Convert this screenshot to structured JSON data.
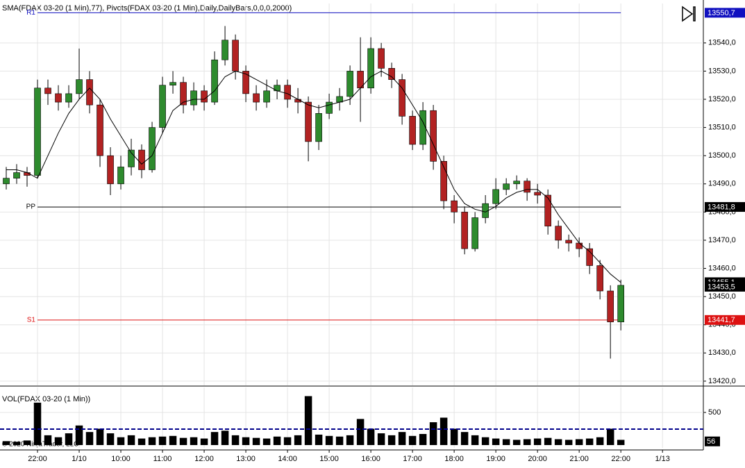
{
  "chart_data": [
    {
      "type": "candlestick",
      "title": "SMA(FDAX 03-20 (1 Min),77),  Pivots(FDAX 03-20 (1 Min),Daily,DailyBars,0,0,0,2000)",
      "up_color": "#2e8b2e",
      "down_color": "#b22222",
      "xlim": [
        -0.9,
        15.98
      ],
      "ylim": [
        13418.5,
        13554.0
      ],
      "yticks": [
        {
          "value": 13420,
          "label": "13420,0"
        },
        {
          "value": 13430,
          "label": "13430,0"
        },
        {
          "value": 13440,
          "label": "13440,0"
        },
        {
          "value": 13450,
          "label": "13450,0"
        },
        {
          "value": 13460,
          "label": "13460,0"
        },
        {
          "value": 13470,
          "label": "13470,0"
        },
        {
          "value": 13480,
          "label": "13480,0"
        },
        {
          "value": 13490,
          "label": "13490,0"
        },
        {
          "value": 13500,
          "label": "13500,0"
        },
        {
          "value": 13510,
          "label": "13510,0"
        },
        {
          "value": 13520,
          "label": "13520,0"
        },
        {
          "value": 13530,
          "label": "13530,0"
        },
        {
          "value": 13540,
          "label": "13540,0"
        }
      ],
      "grid": true,
      "x": [
        -0.75,
        -0.5,
        -0.25,
        0,
        0.25,
        0.5,
        0.75,
        1,
        1.25,
        1.5,
        1.75,
        2,
        2.25,
        2.5,
        2.75,
        3,
        3.25,
        3.5,
        3.75,
        4,
        4.25,
        4.5,
        4.75,
        5,
        5.25,
        5.5,
        5.75,
        6,
        6.25,
        6.5,
        6.75,
        7,
        7.25,
        7.5,
        7.75,
        8,
        8.25,
        8.5,
        8.75,
        9,
        9.25,
        9.5,
        9.75,
        10,
        10.25,
        10.5,
        10.75,
        11,
        11.25,
        11.5,
        11.75,
        12,
        12.25,
        12.5,
        12.75,
        13,
        13.25,
        13.5,
        13.75,
        14
      ],
      "open": [
        13490,
        13492,
        13494,
        13493,
        13524,
        13522,
        13519,
        13522,
        13527,
        13518,
        13500,
        13490,
        13496,
        13502,
        13495,
        13510,
        13525,
        13526,
        13518,
        13523,
        13519,
        13534,
        13541,
        13530,
        13522,
        13519,
        13523,
        13525,
        13520,
        13519,
        13505,
        13515,
        13519,
        13521,
        13530,
        13524,
        13538,
        13531,
        13527,
        13514,
        13504,
        13516,
        13498,
        13484,
        13480,
        13467,
        13478,
        13483,
        13488,
        13490,
        13491,
        13487,
        13486,
        13475,
        13470,
        13469,
        13467,
        13461,
        13452,
        13441
      ],
      "high": [
        13496,
        13497,
        13496,
        13527,
        13527,
        13525,
        13525,
        13538,
        13530,
        13520,
        13503,
        13500,
        13506,
        13504,
        13512,
        13528,
        13530,
        13528,
        13526,
        13525,
        13537,
        13546,
        13543,
        13532,
        13525,
        13527,
        13527,
        13527,
        13524,
        13521,
        13518,
        13522,
        13524,
        13532,
        13542,
        13542,
        13540,
        13533,
        13529,
        13516,
        13519,
        13518,
        13500,
        13486,
        13482,
        13480,
        13486,
        13492,
        13492,
        13493,
        13492,
        13490,
        13488,
        13477,
        13472,
        13471,
        13469,
        13463,
        13454,
        13456
      ],
      "low": [
        13488,
        13490,
        13489,
        13492,
        13518,
        13516,
        13517,
        13520,
        13515,
        13496,
        13486,
        13488,
        13493,
        13492,
        13494,
        13508,
        13522,
        13515,
        13516,
        13516,
        13518,
        13532,
        13527,
        13519,
        13516,
        13517,
        13520,
        13517,
        13515,
        13498,
        13502,
        13513,
        13516,
        13518,
        13512,
        13522,
        13528,
        13524,
        13511,
        13502,
        13502,
        13495,
        13481,
        13476,
        13465,
        13466,
        13476,
        13481,
        13486,
        13488,
        13484,
        13483,
        13472,
        13467,
        13466,
        13464,
        13458,
        13449,
        13428,
        13438
      ],
      "close": [
        13492,
        13494,
        13493,
        13524,
        13522,
        13519,
        13522,
        13527,
        13518,
        13500,
        13490,
        13496,
        13502,
        13495,
        13510,
        13525,
        13526,
        13518,
        13523,
        13519,
        13534,
        13541,
        13530,
        13522,
        13519,
        13523,
        13525,
        13520,
        13519,
        13505,
        13515,
        13519,
        13521,
        13530,
        13524,
        13538,
        13531,
        13527,
        13514,
        13504,
        13516,
        13498,
        13484,
        13480,
        13467,
        13478,
        13483,
        13488,
        13490,
        13491,
        13487,
        13486,
        13475,
        13470,
        13469,
        13467,
        13461,
        13452,
        13441,
        13454
      ],
      "sma": {
        "color": "#000000",
        "values": [
          13495,
          13495,
          13494,
          13492,
          13500,
          13508,
          13515,
          13520,
          13524,
          13520,
          13513,
          13507,
          13501,
          13497,
          13500,
          13508,
          13516,
          13519,
          13520,
          13520,
          13523,
          13528,
          13530,
          13529,
          13527,
          13525,
          13523,
          13522,
          13520,
          13518,
          13517,
          13518,
          13519,
          13520,
          13524,
          13528,
          13530,
          13528,
          13524,
          13518,
          13512,
          13504,
          13496,
          13488,
          13483,
          13481,
          13480,
          13482,
          13485,
          13487,
          13488,
          13488,
          13485,
          13479,
          13474,
          13469,
          13466,
          13462,
          13458,
          13455
        ],
        "last": {
          "value": 13455.1,
          "label": "13455,1"
        }
      },
      "last_price": {
        "value": 13453.5,
        "label": "13453,5"
      },
      "pivots": [
        {
          "name": "R1",
          "value": 13550.7,
          "label": "13550,7",
          "color": "#1010c0"
        },
        {
          "name": "PP",
          "value": 13481.8,
          "label": "13481,8",
          "color": "#000000"
        },
        {
          "name": "S1",
          "value": 13441.7,
          "label": "13441,7",
          "color": "#dd1111"
        }
      ]
    },
    {
      "type": "bar",
      "title": "VOL(FDAX 03-20 (1 Min))",
      "color": "#000000",
      "xlim": [
        -0.9,
        15.98
      ],
      "ylim": [
        -43,
        883
      ],
      "yticks": [
        500
      ],
      "xticks": [
        {
          "value": 0,
          "label": "22:00"
        },
        {
          "value": 1,
          "label": "1/10"
        },
        {
          "value": 2,
          "label": "10:00"
        },
        {
          "value": 3,
          "label": "11:00"
        },
        {
          "value": 4,
          "label": "12:00"
        },
        {
          "value": 5,
          "label": "13:00"
        },
        {
          "value": 6,
          "label": "14:00"
        },
        {
          "value": 7,
          "label": "15:00"
        },
        {
          "value": 8,
          "label": "16:00"
        },
        {
          "value": 9,
          "label": "17:00"
        },
        {
          "value": 10,
          "label": "18:00"
        },
        {
          "value": 11,
          "label": "19:00"
        },
        {
          "value": 12,
          "label": "20:00"
        },
        {
          "value": 13,
          "label": "21:00"
        },
        {
          "value": 14,
          "label": "22:00"
        },
        {
          "value": 15,
          "label": "1/13"
        }
      ],
      "x": [
        -0.75,
        -0.5,
        -0.25,
        0,
        0.25,
        0.5,
        0.75,
        1,
        1.25,
        1.5,
        1.75,
        2,
        2.25,
        2.5,
        2.75,
        3,
        3.25,
        3.5,
        3.75,
        4,
        4.25,
        4.5,
        4.75,
        5,
        5.25,
        5.5,
        5.75,
        6,
        6.25,
        6.5,
        6.75,
        7,
        7.25,
        7.5,
        7.75,
        8,
        8.25,
        8.5,
        8.75,
        9,
        9.25,
        9.5,
        9.75,
        10,
        10.25,
        10.5,
        10.75,
        11,
        11.25,
        11.5,
        11.75,
        12,
        12.25,
        12.5,
        12.75,
        13,
        13.25,
        13.5,
        13.75,
        14
      ],
      "values": [
        60,
        50,
        70,
        650,
        150,
        120,
        180,
        300,
        200,
        250,
        180,
        120,
        150,
        100,
        120,
        130,
        140,
        110,
        120,
        100,
        200,
        220,
        150,
        120,
        110,
        100,
        130,
        120,
        150,
        750,
        160,
        140,
        130,
        150,
        400,
        250,
        180,
        150,
        200,
        140,
        170,
        350,
        420,
        250,
        200,
        150,
        120,
        100,
        90,
        80,
        90,
        100,
        110,
        90,
        80,
        90,
        100,
        120,
        250,
        80
      ],
      "average": 245,
      "average_color": "#00008b",
      "last": 56,
      "copyright": "© 2020 NinjaTrader, LLC"
    }
  ]
}
